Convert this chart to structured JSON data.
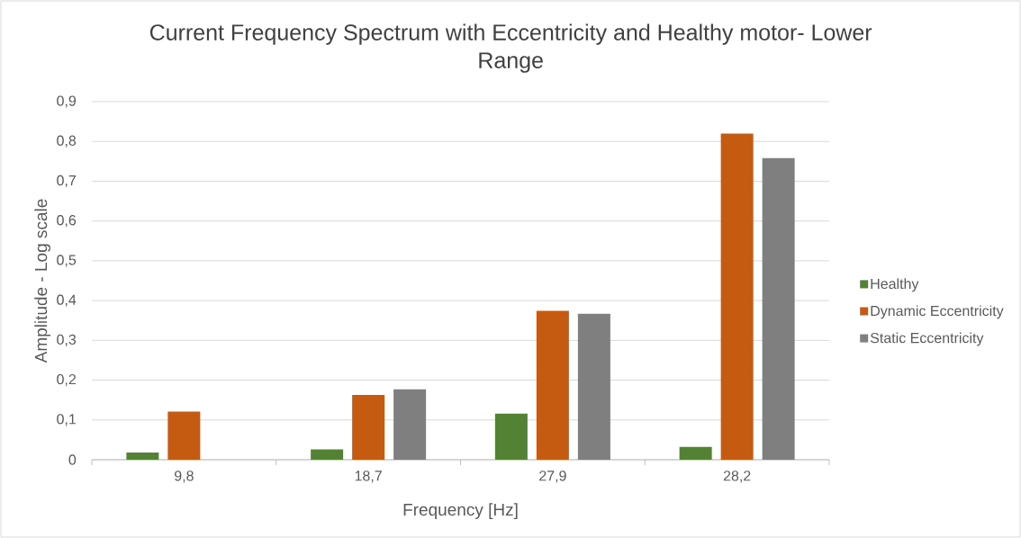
{
  "chart_data": {
    "type": "bar",
    "title": "Current Frequency Spectrum with Eccentricity and Healthy motor- Lower Range",
    "xlabel": "Frequency [Hz]",
    "ylabel": "Amplitude - Log scale",
    "categories": [
      "9,8",
      "18,7",
      "27,9",
      "28,2"
    ],
    "series": [
      {
        "name": "Healthy",
        "color": "#548235",
        "values": [
          0.018,
          0.026,
          0.116,
          0.032
        ]
      },
      {
        "name": "Dynamic Eccentricity",
        "color": "#c55a11",
        "values": [
          0.121,
          0.163,
          0.374,
          0.82
        ]
      },
      {
        "name": "Static Eccentricity",
        "color": "#7f7f7f",
        "values": [
          null,
          0.177,
          0.367,
          0.758
        ]
      }
    ],
    "ylim": [
      0,
      0.9
    ],
    "yticks": [
      0,
      {
        "value": 0.1,
        "label": "0,1"
      },
      {
        "value": 0.2,
        "label": "0,2"
      },
      {
        "value": 0.3,
        "label": "0,3"
      },
      {
        "value": 0.4,
        "label": "0,4"
      },
      {
        "value": 0.5,
        "label": "0,5"
      },
      {
        "value": 0.6,
        "label": "0,6"
      },
      {
        "value": 0.7,
        "label": "0,7"
      },
      {
        "value": 0.8,
        "label": "0,8"
      },
      {
        "value": 0.9,
        "label": "0,9"
      }
    ],
    "grid": "y",
    "legend": "right"
  }
}
